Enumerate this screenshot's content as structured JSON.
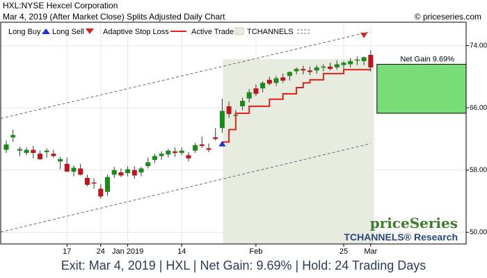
{
  "header": {
    "title": "HXL:NYSE Hexcel Corporation",
    "subtitle": "Mar 4, 2019 (After Market Close)  Splits Adjusted Daily Chart",
    "copyright": "© priceseries.com"
  },
  "legend": {
    "long_buy": "Long Buy",
    "long_sell": "Long Sell",
    "adaptive_stop": "Adaptive Stop Loss",
    "active_trade": "Active Trade",
    "tchannels": "TCHANNELS"
  },
  "watermark": {
    "brand": "priceSeries",
    "research": "TCHANNELS® Research"
  },
  "footer": {
    "text": "Exit: Mar 4, 2019 | HXL | Net Gain: 9.69% | Hold: 24 Trading Days"
  },
  "colors": {
    "up": "#1a8a1a",
    "down": "#c0141c",
    "stop": "#e0201c",
    "gain_box": "#77dd77",
    "active_bg": "#e8ecdf",
    "channel": "#5a6a85",
    "buy_marker": "#1a2fd6",
    "sell_marker": "#e0201c"
  },
  "chart_data": {
    "type": "candlestick",
    "ylim": [
      48.5,
      77
    ],
    "y_ticks": [
      "50.00",
      "58.00",
      "66.00",
      "74.00"
    ],
    "x_ticks": [
      {
        "label": "17",
        "i": 9
      },
      {
        "label": "24",
        "i": 14
      },
      {
        "label": "Jan 2019",
        "i": 18
      },
      {
        "label": "14",
        "i": 26
      },
      {
        "label": "Feb",
        "i": 37
      },
      {
        "label": "25",
        "i": 50
      },
      {
        "label": "Mar",
        "i": 54
      }
    ],
    "candles": [
      {
        "o": 60.6,
        "h": 61.8,
        "l": 60.2,
        "c": 61.3
      },
      {
        "o": 62.2,
        "h": 63.2,
        "l": 61.6,
        "c": 62.5
      },
      {
        "o": 60.5,
        "h": 61.0,
        "l": 59.8,
        "c": 60.7
      },
      {
        "o": 60.2,
        "h": 60.9,
        "l": 59.9,
        "c": 60.6
      },
      {
        "o": 60.6,
        "h": 61.1,
        "l": 59.5,
        "c": 60.2
      },
      {
        "o": 60.1,
        "h": 60.5,
        "l": 59.3,
        "c": 59.4
      },
      {
        "o": 60.3,
        "h": 60.8,
        "l": 59.6,
        "c": 60.5
      },
      {
        "o": 60.1,
        "h": 60.6,
        "l": 59.6,
        "c": 59.8
      },
      {
        "o": 59.1,
        "h": 59.7,
        "l": 58.1,
        "c": 59.4
      },
      {
        "o": 58.8,
        "h": 59.6,
        "l": 57.8,
        "c": 57.8
      },
      {
        "o": 57.8,
        "h": 58.6,
        "l": 57.2,
        "c": 58.3
      },
      {
        "o": 58.2,
        "h": 58.8,
        "l": 57.3,
        "c": 57.4
      },
      {
        "o": 57.0,
        "h": 57.4,
        "l": 55.9,
        "c": 56.1
      },
      {
        "o": 56.4,
        "h": 56.9,
        "l": 55.6,
        "c": 56.3
      },
      {
        "o": 55.6,
        "h": 56.2,
        "l": 54.3,
        "c": 54.6
      },
      {
        "o": 55.2,
        "h": 57.4,
        "l": 54.7,
        "c": 57.1
      },
      {
        "o": 57.4,
        "h": 58.4,
        "l": 57.0,
        "c": 58.0
      },
      {
        "o": 57.7,
        "h": 58.2,
        "l": 57.1,
        "c": 57.3
      },
      {
        "o": 57.6,
        "h": 58.5,
        "l": 57.2,
        "c": 58.1
      },
      {
        "o": 58.0,
        "h": 58.5,
        "l": 56.9,
        "c": 57.3
      },
      {
        "o": 57.7,
        "h": 58.4,
        "l": 57.2,
        "c": 58.2
      },
      {
        "o": 58.5,
        "h": 59.6,
        "l": 58.2,
        "c": 59.0
      },
      {
        "o": 59.3,
        "h": 60.1,
        "l": 58.9,
        "c": 59.8
      },
      {
        "o": 59.8,
        "h": 60.4,
        "l": 59.3,
        "c": 60.1
      },
      {
        "o": 60.0,
        "h": 60.7,
        "l": 59.6,
        "c": 60.5
      },
      {
        "o": 60.4,
        "h": 60.9,
        "l": 59.7,
        "c": 60.2
      },
      {
        "o": 60.2,
        "h": 60.9,
        "l": 59.9,
        "c": 60.5
      },
      {
        "o": 59.9,
        "h": 60.3,
        "l": 59.1,
        "c": 59.5
      },
      {
        "o": 60.5,
        "h": 61.5,
        "l": 60.2,
        "c": 61.2
      },
      {
        "o": 61.3,
        "h": 62.3,
        "l": 60.8,
        "c": 61.1
      },
      {
        "o": 60.8,
        "h": 61.4,
        "l": 60.3,
        "c": 60.6
      },
      {
        "o": 62.2,
        "h": 63.4,
        "l": 61.8,
        "c": 62.0
      },
      {
        "o": 63.4,
        "h": 67.2,
        "l": 62.8,
        "c": 65.6
      },
      {
        "o": 66.2,
        "h": 66.8,
        "l": 64.7,
        "c": 65.2
      },
      {
        "o": 65.1,
        "h": 65.7,
        "l": 64.6,
        "c": 65.1
      },
      {
        "o": 66.2,
        "h": 67.3,
        "l": 65.7,
        "c": 66.9
      },
      {
        "o": 67.2,
        "h": 68.4,
        "l": 66.7,
        "c": 68.0
      },
      {
        "o": 68.5,
        "h": 69.0,
        "l": 67.5,
        "c": 67.8
      },
      {
        "o": 68.5,
        "h": 69.4,
        "l": 68.0,
        "c": 69.2
      },
      {
        "o": 69.6,
        "h": 70.0,
        "l": 68.9,
        "c": 69.1
      },
      {
        "o": 69.2,
        "h": 70.1,
        "l": 68.8,
        "c": 69.8
      },
      {
        "o": 69.9,
        "h": 70.4,
        "l": 69.2,
        "c": 69.5
      },
      {
        "o": 70.1,
        "h": 70.7,
        "l": 69.5,
        "c": 70.6
      },
      {
        "o": 70.7,
        "h": 71.2,
        "l": 70.3,
        "c": 71.0
      },
      {
        "o": 71.0,
        "h": 71.4,
        "l": 70.3,
        "c": 70.8
      },
      {
        "o": 70.8,
        "h": 71.3,
        "l": 70.2,
        "c": 70.6
      },
      {
        "o": 70.8,
        "h": 71.5,
        "l": 70.4,
        "c": 71.2
      },
      {
        "o": 71.2,
        "h": 71.6,
        "l": 70.7,
        "c": 71.3
      },
      {
        "o": 71.3,
        "h": 71.8,
        "l": 70.8,
        "c": 71.0
      },
      {
        "o": 71.2,
        "h": 72.1,
        "l": 70.9,
        "c": 71.6
      },
      {
        "o": 71.5,
        "h": 72.0,
        "l": 71.0,
        "c": 71.8
      },
      {
        "o": 71.6,
        "h": 72.4,
        "l": 71.2,
        "c": 72.0
      },
      {
        "o": 72.1,
        "h": 72.6,
        "l": 71.5,
        "c": 72.2
      },
      {
        "o": 72.0,
        "h": 72.6,
        "l": 71.5,
        "c": 72.5
      },
      {
        "o": 72.8,
        "h": 73.4,
        "l": 70.7,
        "c": 71.2
      }
    ],
    "stop_loss": [
      {
        "i": 32,
        "v": 61.6
      },
      {
        "i": 33,
        "v": 63.2
      },
      {
        "i": 34,
        "v": 65.3
      },
      {
        "i": 35,
        "v": 65.3
      },
      {
        "i": 36,
        "v": 66.2
      },
      {
        "i": 37,
        "v": 66.2
      },
      {
        "i": 38,
        "v": 66.2
      },
      {
        "i": 39,
        "v": 67.1
      },
      {
        "i": 40,
        "v": 67.1
      },
      {
        "i": 41,
        "v": 67.8
      },
      {
        "i": 42,
        "v": 67.8
      },
      {
        "i": 43,
        "v": 68.6
      },
      {
        "i": 44,
        "v": 69.2
      },
      {
        "i": 45,
        "v": 69.6
      },
      {
        "i": 46,
        "v": 69.6
      },
      {
        "i": 47,
        "v": 70.4
      },
      {
        "i": 48,
        "v": 70.4
      },
      {
        "i": 49,
        "v": 70.4
      },
      {
        "i": 50,
        "v": 70.9
      },
      {
        "i": 51,
        "v": 70.9
      },
      {
        "i": 52,
        "v": 70.9
      },
      {
        "i": 53,
        "v": 70.9
      },
      {
        "i": 54,
        "v": 70.9
      }
    ],
    "channel_upper": [
      {
        "i": 0,
        "v": 64.8
      },
      {
        "i": 54,
        "v": 75.8
      }
    ],
    "channel_lower": [
      {
        "i": 0,
        "v": 50.2
      },
      {
        "i": 54,
        "v": 61.4
      }
    ],
    "buy_signal": {
      "i": 32,
      "v": 61.4
    },
    "sell_signal": {
      "i": 53,
      "v": 75.3
    },
    "active_trade": {
      "start_i": 32,
      "end_i": 54
    },
    "net_gain": {
      "label": "Net Gain 9.69%",
      "from": 65.3,
      "to": 71.6
    }
  }
}
